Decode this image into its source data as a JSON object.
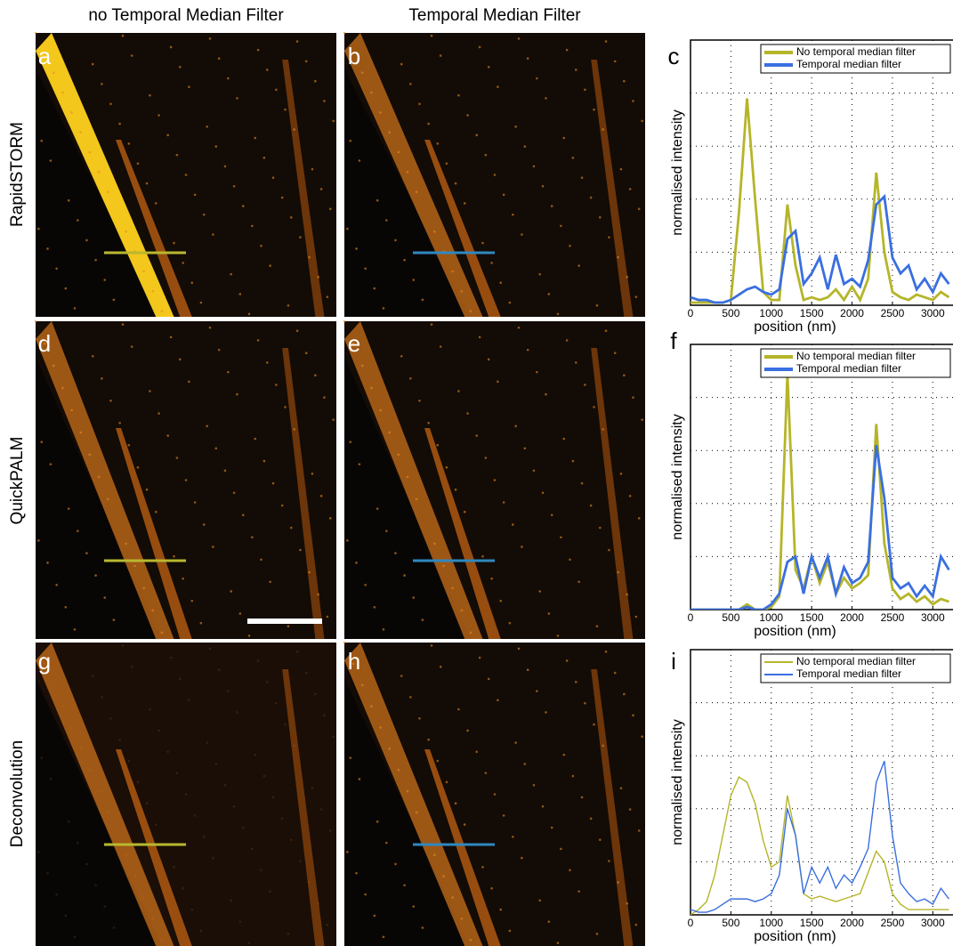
{
  "column_headers": [
    "no Temporal Median Filter",
    "Temporal Median Filter"
  ],
  "row_labels": [
    "RapidSTORM",
    "QuickPALM",
    "Deconvolution"
  ],
  "panel_labels": [
    "a",
    "b",
    "c",
    "d",
    "e",
    "f",
    "g",
    "h",
    "i"
  ],
  "chart_data": [
    {
      "type": "line",
      "xlabel": "position (nm)",
      "ylabel": "normalised intensity",
      "x": [
        0,
        100,
        200,
        300,
        400,
        500,
        600,
        700,
        800,
        900,
        1000,
        1100,
        1200,
        1300,
        1400,
        1500,
        1600,
        1700,
        1800,
        1900,
        2000,
        2100,
        2200,
        2300,
        2400,
        2500,
        2600,
        2700,
        2800,
        2900,
        3000,
        3100,
        3200
      ],
      "series": [
        {
          "name": "No temporal median filter",
          "color": "#b5b52a",
          "values": [
            0.01,
            0.01,
            0.01,
            0.01,
            0.01,
            0.02,
            0.35,
            0.78,
            0.4,
            0.05,
            0.02,
            0.02,
            0.38,
            0.15,
            0.02,
            0.03,
            0.02,
            0.03,
            0.06,
            0.02,
            0.07,
            0.02,
            0.1,
            0.5,
            0.2,
            0.05,
            0.03,
            0.02,
            0.04,
            0.03,
            0.02,
            0.05,
            0.03
          ]
        },
        {
          "name": "Temporal median filter",
          "color": "#3a6fe0",
          "values": [
            0.03,
            0.02,
            0.02,
            0.01,
            0.01,
            0.02,
            0.04,
            0.06,
            0.07,
            0.05,
            0.04,
            0.06,
            0.25,
            0.28,
            0.08,
            0.12,
            0.18,
            0.06,
            0.19,
            0.08,
            0.1,
            0.07,
            0.17,
            0.38,
            0.41,
            0.18,
            0.12,
            0.15,
            0.06,
            0.1,
            0.05,
            0.12,
            0.08
          ]
        }
      ],
      "xlim": [
        0,
        3250
      ],
      "ylim": [
        0,
        1
      ],
      "xticks": [
        0,
        500,
        1000,
        1500,
        2000,
        2500,
        3000
      ],
      "grid": true,
      "legend": "upper right",
      "linewidth": 4
    },
    {
      "type": "line",
      "xlabel": "position (nm)",
      "ylabel": "normalised intensity",
      "x": [
        0,
        100,
        200,
        300,
        400,
        500,
        600,
        700,
        800,
        900,
        1000,
        1100,
        1200,
        1300,
        1400,
        1500,
        1600,
        1700,
        1800,
        1900,
        2000,
        2100,
        2200,
        2300,
        2400,
        2500,
        2600,
        2700,
        2800,
        2900,
        3000,
        3100,
        3200
      ],
      "series": [
        {
          "name": "No temporal median filter",
          "color": "#b5b52a",
          "values": [
            0,
            0,
            0,
            0,
            0,
            0,
            0,
            0.02,
            0,
            0,
            0.01,
            0.05,
            0.89,
            0.15,
            0.08,
            0.2,
            0.1,
            0.18,
            0.06,
            0.12,
            0.08,
            0.1,
            0.13,
            0.7,
            0.25,
            0.08,
            0.04,
            0.06,
            0.03,
            0.05,
            0.02,
            0.04,
            0.03
          ]
        },
        {
          "name": "Temporal median filter",
          "color": "#3a6fe0",
          "values": [
            0,
            0,
            0,
            0,
            0,
            0,
            0,
            0.01,
            0,
            0,
            0.02,
            0.06,
            0.18,
            0.2,
            0.06,
            0.2,
            0.12,
            0.2,
            0.06,
            0.16,
            0.1,
            0.12,
            0.18,
            0.62,
            0.42,
            0.12,
            0.08,
            0.1,
            0.05,
            0.09,
            0.05,
            0.2,
            0.15
          ]
        }
      ],
      "xlim": [
        0,
        3250
      ],
      "ylim": [
        0,
        1
      ],
      "xticks": [
        0,
        500,
        1000,
        1500,
        2000,
        2500,
        3000
      ],
      "grid": true,
      "legend": "upper right",
      "linewidth": 4
    },
    {
      "type": "line",
      "xlabel": "position (nm)",
      "ylabel": "normalised intensity",
      "x": [
        0,
        100,
        200,
        300,
        400,
        500,
        600,
        700,
        800,
        900,
        1000,
        1100,
        1200,
        1300,
        1400,
        1500,
        1600,
        1700,
        1800,
        1900,
        2000,
        2100,
        2200,
        2300,
        2400,
        2500,
        2600,
        2700,
        2800,
        2900,
        3000,
        3100,
        3200
      ],
      "series": [
        {
          "name": "No temporal median filter",
          "color": "#b5b52a",
          "values": [
            0,
            0.02,
            0.05,
            0.15,
            0.3,
            0.45,
            0.52,
            0.5,
            0.42,
            0.28,
            0.18,
            0.2,
            0.45,
            0.3,
            0.08,
            0.06,
            0.07,
            0.06,
            0.05,
            0.06,
            0.07,
            0.08,
            0.16,
            0.24,
            0.2,
            0.08,
            0.04,
            0.02,
            0.02,
            0.02,
            0.02,
            0.02,
            0.02
          ]
        },
        {
          "name": "Temporal median filter",
          "color": "#3a6fe0",
          "values": [
            0.02,
            0.01,
            0.01,
            0.02,
            0.04,
            0.06,
            0.06,
            0.06,
            0.05,
            0.06,
            0.08,
            0.15,
            0.4,
            0.3,
            0.08,
            0.18,
            0.12,
            0.18,
            0.1,
            0.15,
            0.12,
            0.18,
            0.25,
            0.5,
            0.58,
            0.3,
            0.12,
            0.08,
            0.05,
            0.06,
            0.04,
            0.1,
            0.06
          ]
        }
      ],
      "xlim": [
        0,
        3250
      ],
      "ylim": [
        0,
        1
      ],
      "xticks": [
        0,
        500,
        1000,
        1500,
        2000,
        2500,
        3000
      ],
      "grid": true,
      "legend": "upper right",
      "linewidth": 2
    }
  ]
}
